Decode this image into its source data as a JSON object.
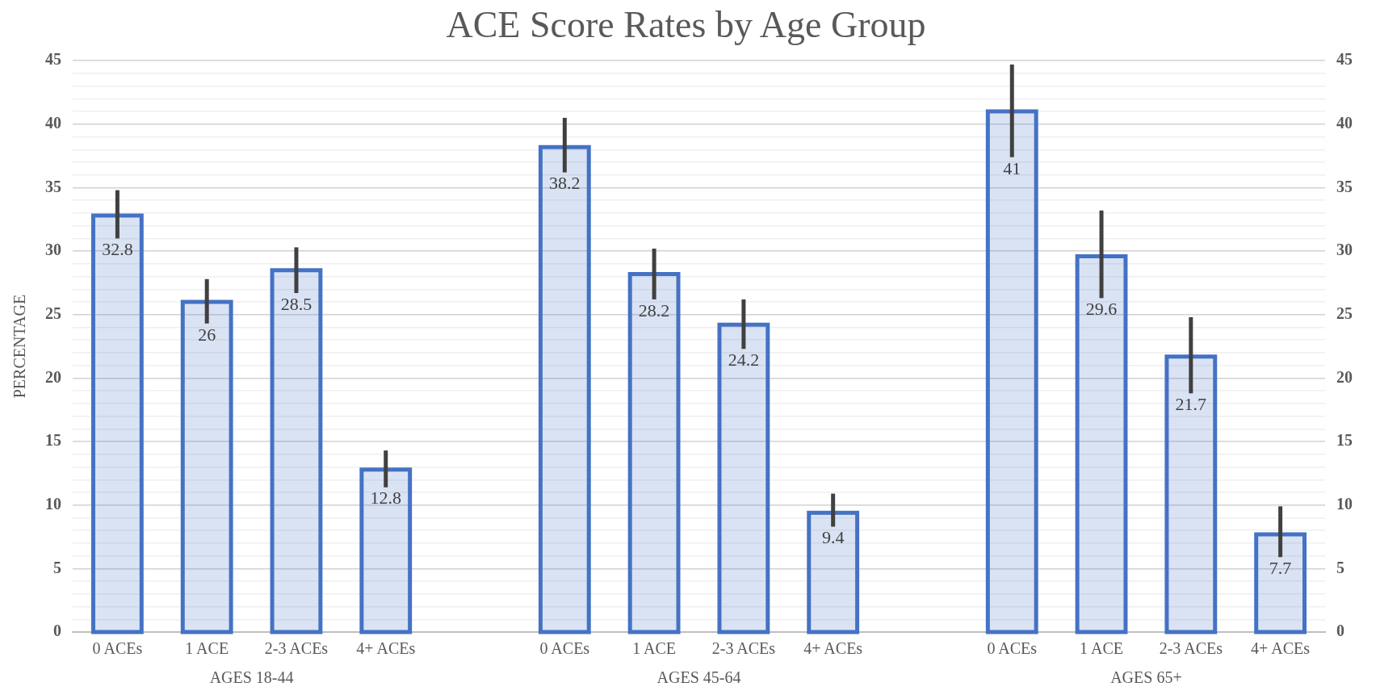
{
  "chart_data": {
    "type": "bar",
    "title": "ACE Score Rates by Age Group",
    "ylabel": "PERCENTAGE",
    "categories": [
      "0 ACEs",
      "1 ACE",
      "2-3 ACEs",
      "4+ ACEs",
      null,
      "0 ACEs",
      "1 ACE",
      "2-3 ACEs",
      "4+ ACEs",
      null,
      "0 ACEs",
      "1 ACE",
      "2-3 ACEs",
      "4+ ACEs"
    ],
    "values": [
      32.8,
      26,
      28.5,
      12.8,
      null,
      38.2,
      28.2,
      24.2,
      9.4,
      null,
      41,
      29.6,
      21.7,
      7.7
    ],
    "errors": [
      [
        31.0,
        34.8
      ],
      [
        24.3,
        27.8
      ],
      [
        26.7,
        30.3
      ],
      [
        11.4,
        14.3
      ],
      null,
      [
        36.2,
        40.5
      ],
      [
        26.2,
        30.2
      ],
      [
        22.3,
        26.2
      ],
      [
        8.3,
        10.9
      ],
      null,
      [
        37.4,
        44.7
      ],
      [
        26.3,
        33.2
      ],
      [
        18.8,
        24.8
      ],
      [
        5.9,
        9.9
      ]
    ],
    "color": "#4472c4",
    "data_labels": true,
    "annotations": [
      "AGES 18-44",
      "AGES 45-64",
      "AGES 65+"
    ],
    "ylim": [
      0,
      45
    ],
    "yticks": [
      0,
      {
        "value": 1,
        "label": null
      },
      {
        "value": 2,
        "label": null
      },
      {
        "value": 3,
        "label": null
      },
      {
        "value": 4,
        "label": null
      },
      5,
      {
        "value": 6,
        "label": null
      },
      {
        "value": 7,
        "label": null
      },
      {
        "value": 8,
        "label": null
      },
      {
        "value": 9,
        "label": null
      },
      10,
      {
        "value": 11,
        "label": null
      },
      {
        "value": 12,
        "label": null
      },
      {
        "value": 13,
        "label": null
      },
      {
        "value": 14,
        "label": null
      },
      15,
      {
        "value": 16,
        "label": null
      },
      {
        "value": 17,
        "label": null
      },
      {
        "value": 18,
        "label": null
      },
      {
        "value": 19,
        "label": null
      },
      20,
      {
        "value": 21,
        "label": null
      },
      {
        "value": 22,
        "label": null
      },
      {
        "value": 23,
        "label": null
      },
      {
        "value": 24,
        "label": null
      },
      25,
      {
        "value": 26,
        "label": null
      },
      {
        "value": 27,
        "label": null
      },
      {
        "value": 28,
        "label": null
      },
      {
        "value": 29,
        "label": null
      },
      30,
      {
        "value": 31,
        "label": null
      },
      {
        "value": 32,
        "label": null
      },
      {
        "value": 33,
        "label": null
      },
      {
        "value": 34,
        "label": null
      },
      35,
      {
        "value": 36,
        "label": null
      },
      {
        "value": 37,
        "label": null
      },
      {
        "value": 38,
        "label": null
      },
      {
        "value": 39,
        "label": null
      },
      40,
      {
        "value": 41,
        "label": null
      },
      {
        "value": 42,
        "label": null
      },
      {
        "value": 43,
        "label": null
      },
      {
        "value": 44,
        "label": null
      },
      45
    ],
    "y2lim": [
      0,
      45
    ],
    "y2ticks": [
      0,
      5,
      10,
      15,
      20,
      25,
      30,
      35,
      40,
      45
    ],
    "grid": "y"
  }
}
